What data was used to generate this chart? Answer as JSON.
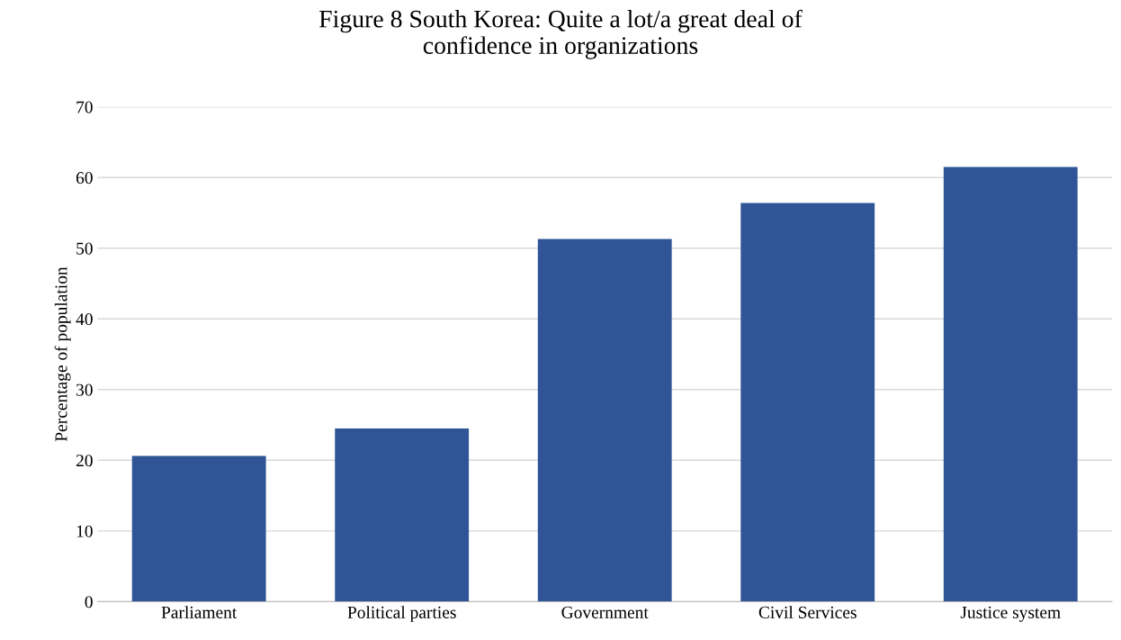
{
  "chart_data": {
    "type": "bar",
    "title": "Figure 8 South Korea: Quite a lot/a great deal of\nconfidence in organizations",
    "ylabel": "Percentage of population",
    "categories": [
      "Parliament",
      "Political parties",
      "Government",
      "Civil Services",
      "Justice system"
    ],
    "values": [
      20.6,
      24.5,
      51.3,
      56.4,
      61.5
    ],
    "color": "#2f5597",
    "ylim": [
      0,
      70
    ],
    "yticks": [
      0,
      10,
      20,
      30,
      40,
      50,
      60,
      70
    ],
    "grid": "y"
  }
}
